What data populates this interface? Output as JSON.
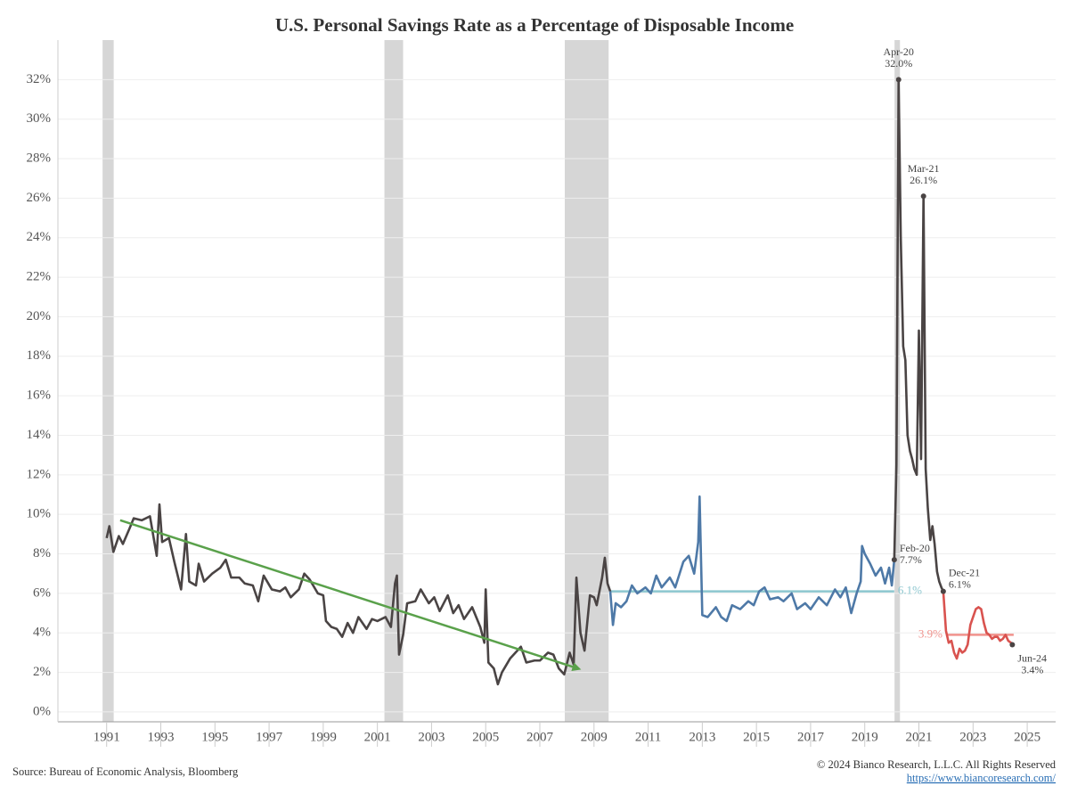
{
  "chart_data": {
    "type": "line",
    "title": "U.S. Personal Savings Rate as a Percentage of Disposable Income",
    "source": "Source: Bureau of Economic Analysis, Bloomberg",
    "copyright": "© 2024 Bianco Research, L.L.C. All Rights Reserved",
    "url": "https://www.biancoresearch.com/",
    "xlim": [
      1989.2,
      2026.05
    ],
    "ylim": [
      -0.5,
      34
    ],
    "xticks": [
      1991,
      1993,
      1995,
      1997,
      1999,
      2001,
      2003,
      2005,
      2007,
      2009,
      2011,
      2013,
      2015,
      2017,
      2019,
      2021,
      2023,
      2025
    ],
    "yticks": [
      {
        "value": 0,
        "label": "0%"
      },
      {
        "value": 2,
        "label": "2%"
      },
      {
        "value": 4,
        "label": "4%"
      },
      {
        "value": 6,
        "label": "6%"
      },
      {
        "value": 8,
        "label": "8%"
      },
      {
        "value": 10,
        "label": "10%"
      },
      {
        "value": 12,
        "label": "12%"
      },
      {
        "value": 14,
        "label": "14%"
      },
      {
        "value": 16,
        "label": "16%"
      },
      {
        "value": 18,
        "label": "18%"
      },
      {
        "value": 20,
        "label": "20%"
      },
      {
        "value": 22,
        "label": "22%"
      },
      {
        "value": 24,
        "label": "24%"
      },
      {
        "value": 26,
        "label": "26%"
      },
      {
        "value": 28,
        "label": "28%"
      },
      {
        "value": 30,
        "label": "30%"
      },
      {
        "value": 32,
        "label": "32%"
      }
    ],
    "grid": true,
    "shaded_ranges": [
      [
        1990.85,
        1991.26
      ],
      [
        2001.26,
        2001.95
      ],
      [
        2007.92,
        2009.54
      ],
      [
        2020.1,
        2020.3
      ]
    ],
    "shade_color": "#d6d6d6",
    "series": [
      {
        "color": "#4a4444",
        "x": [
          1991.0,
          1991.1,
          1991.25,
          1991.45,
          1991.6,
          1991.85,
          1992.0,
          1992.3,
          1992.6,
          1992.75,
          1992.85,
          1992.95,
          1993.05,
          1993.3,
          1993.5,
          1993.75,
          1993.93,
          1994.05,
          1994.3,
          1994.4,
          1994.6,
          1994.9,
          1995.2,
          1995.4,
          1995.6,
          1995.9,
          1996.1,
          1996.4,
          1996.6,
          1996.8,
          1997.1,
          1997.4,
          1997.6,
          1997.8,
          1998.1,
          1998.3,
          1998.5,
          1998.8,
          1999.0,
          1999.1,
          1999.3,
          1999.5,
          1999.7,
          1999.9,
          2000.1,
          2000.3,
          2000.6,
          2000.8,
          2001.0,
          2001.3,
          2001.5,
          2001.65,
          2001.72,
          2001.8,
          2001.95,
          2002.1,
          2002.4,
          2002.6,
          2002.9,
          2003.1,
          2003.3,
          2003.6,
          2003.8,
          2004.0,
          2004.2,
          2004.5,
          2004.8,
          2004.95,
          2005.0,
          2005.1,
          2005.3,
          2005.45,
          2005.6,
          2005.9,
          2006.1,
          2006.3,
          2006.5,
          2006.8,
          2007.0,
          2007.3,
          2007.5,
          2007.7,
          2007.9,
          2008.1,
          2008.25,
          2008.35,
          2008.5,
          2008.65,
          2008.85,
          2009.0,
          2009.1,
          2009.3,
          2009.4,
          2009.5,
          2009.6
        ],
        "values": [
          8.8,
          9.4,
          8.1,
          8.9,
          8.5,
          9.3,
          9.8,
          9.7,
          9.9,
          8.7,
          7.9,
          10.5,
          8.6,
          8.8,
          7.6,
          6.2,
          9.0,
          6.6,
          6.4,
          7.5,
          6.6,
          7.0,
          7.3,
          7.7,
          6.8,
          6.8,
          6.5,
          6.4,
          5.6,
          6.9,
          6.2,
          6.1,
          6.3,
          5.8,
          6.2,
          7.0,
          6.7,
          6.0,
          5.9,
          4.6,
          4.3,
          4.2,
          3.8,
          4.5,
          4.0,
          4.8,
          4.2,
          4.7,
          4.6,
          4.8,
          4.3,
          6.5,
          6.9,
          2.9,
          3.9,
          5.5,
          5.6,
          6.2,
          5.5,
          5.8,
          5.1,
          5.9,
          5.0,
          5.4,
          4.7,
          5.3,
          4.3,
          3.5,
          6.2,
          2.5,
          2.2,
          1.4,
          2.0,
          2.7,
          3.0,
          3.3,
          2.5,
          2.6,
          2.6,
          3.0,
          2.9,
          2.2,
          1.9,
          3.0,
          2.4,
          6.8,
          4.0,
          3.1,
          5.9,
          5.8,
          5.4,
          6.8,
          7.8,
          6.5,
          6.1
        ]
      },
      {
        "color": "#4e79a7",
        "x": [
          2009.6,
          2009.7,
          2009.8,
          2010.0,
          2010.2,
          2010.4,
          2010.6,
          2010.9,
          2011.1,
          2011.3,
          2011.5,
          2011.8,
          2012.0,
          2012.3,
          2012.5,
          2012.7,
          2012.85,
          2012.9,
          2013.0,
          2013.2,
          2013.5,
          2013.7,
          2013.9,
          2014.1,
          2014.4,
          2014.7,
          2014.9,
          2015.1,
          2015.3,
          2015.5,
          2015.8,
          2016.0,
          2016.3,
          2016.5,
          2016.8,
          2017.0,
          2017.3,
          2017.6,
          2017.9,
          2018.1,
          2018.3,
          2018.5,
          2018.7,
          2018.85,
          2018.9,
          2019.0,
          2019.2,
          2019.4,
          2019.6,
          2019.75,
          2019.9,
          2020.0,
          2020.09
        ],
        "values": [
          6.1,
          4.4,
          5.5,
          5.3,
          5.6,
          6.4,
          6.0,
          6.3,
          6.0,
          6.9,
          6.3,
          6.8,
          6.3,
          7.6,
          7.9,
          7.0,
          8.6,
          10.9,
          4.9,
          4.8,
          5.3,
          4.8,
          4.6,
          5.4,
          5.2,
          5.6,
          5.4,
          6.1,
          6.3,
          5.7,
          5.8,
          5.6,
          6.0,
          5.2,
          5.5,
          5.2,
          5.8,
          5.4,
          6.2,
          5.8,
          6.3,
          5.0,
          6.0,
          6.6,
          8.4,
          8.0,
          7.5,
          6.9,
          7.3,
          6.5,
          7.3,
          6.4,
          7.7
        ]
      },
      {
        "color": "#4a4444",
        "x": [
          2020.09,
          2020.17,
          2020.25,
          2020.33,
          2020.42,
          2020.5,
          2020.58,
          2020.67,
          2020.75,
          2020.83,
          2020.92,
          2021.0,
          2021.08,
          2021.17,
          2021.25,
          2021.33,
          2021.42,
          2021.5,
          2021.58,
          2021.67,
          2021.75,
          2021.83,
          2021.9
        ],
        "values": [
          7.7,
          12.5,
          32.0,
          24.0,
          18.5,
          17.8,
          14.0,
          13.2,
          12.8,
          12.3,
          12.0,
          19.3,
          12.8,
          26.1,
          12.3,
          10.3,
          8.7,
          9.4,
          8.5,
          7.1,
          6.6,
          6.3,
          6.1
        ]
      },
      {
        "color": "#d9534f",
        "x": [
          2021.9,
          2022.0,
          2022.1,
          2022.2,
          2022.3,
          2022.4,
          2022.5,
          2022.6,
          2022.7,
          2022.8,
          2022.9,
          2023.0,
          2023.1,
          2023.2,
          2023.3,
          2023.4,
          2023.5,
          2023.6,
          2023.7,
          2023.8,
          2023.9,
          2024.0,
          2024.1,
          2024.2,
          2024.3,
          2024.4,
          2024.45
        ],
        "values": [
          6.1,
          4.1,
          3.5,
          3.6,
          3.0,
          2.7,
          3.2,
          3.0,
          3.1,
          3.4,
          4.4,
          4.8,
          5.2,
          5.3,
          5.2,
          4.5,
          4.0,
          3.9,
          3.7,
          3.8,
          3.8,
          3.6,
          3.7,
          3.9,
          3.6,
          3.5,
          3.4
        ]
      }
    ],
    "reference_lines": [
      {
        "value": 6.1,
        "label": "6.1%",
        "x": [
          2009.6,
          2020.09
        ],
        "color": "#8cc6cf"
      },
      {
        "value": 3.9,
        "label": "3.9%",
        "x": [
          2022.0,
          2024.5
        ],
        "color": "#f0928c"
      }
    ],
    "trend": {
      "x": [
        1991.5,
        2008.4
      ],
      "values": [
        9.7,
        2.2
      ],
      "color": "#5aa14b"
    },
    "annotations": [
      {
        "label": "Apr-20",
        "value_label": "32.0%",
        "x": 2020.25,
        "value": 32.0
      },
      {
        "label": "Mar-21",
        "value_label": "26.1%",
        "x": 2021.17,
        "value": 26.1
      },
      {
        "label": "Feb-20",
        "value_label": "7.7%",
        "x": 2020.09,
        "value": 7.7
      },
      {
        "label": "Dec-21",
        "value_label": "6.1%",
        "x": 2021.9,
        "value": 6.1
      },
      {
        "label": "Jun-24",
        "value_label": "3.4%",
        "x": 2024.45,
        "value": 3.4
      }
    ]
  }
}
